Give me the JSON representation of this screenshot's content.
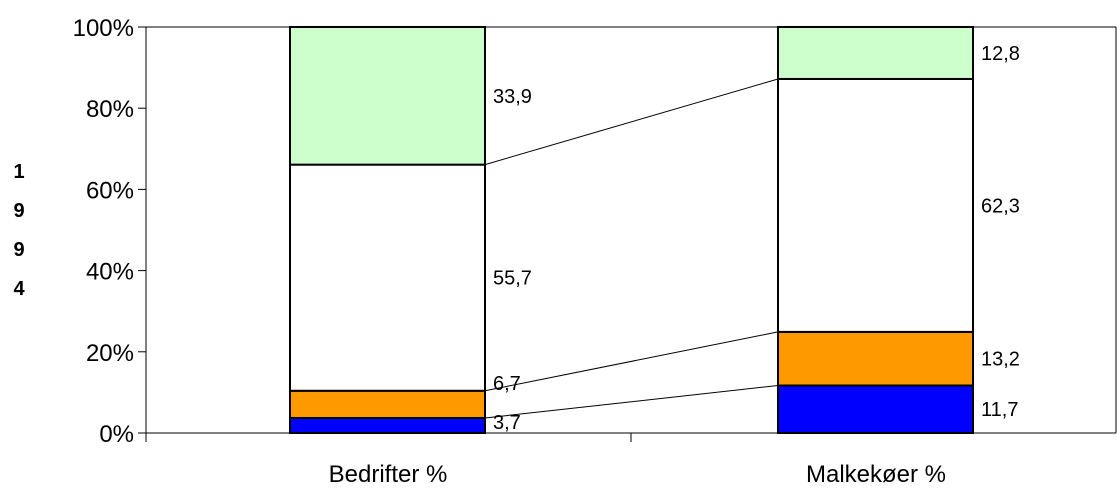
{
  "chart_data": {
    "type": "bar",
    "stacked": true,
    "percent": true,
    "ylabel": "1994",
    "categories": [
      "Bedrifter %",
      "Malkekøer %"
    ],
    "y_ticks": [
      "0%",
      "20%",
      "40%",
      "60%",
      "80%",
      "100%"
    ],
    "ylim": [
      0,
      100
    ],
    "grid": false,
    "legend": "none",
    "series": [
      {
        "values": [
          3.7,
          11.7
        ],
        "labels": [
          "3,7",
          "11,7"
        ],
        "color": "#0000ff"
      },
      {
        "values": [
          6.7,
          13.2
        ],
        "labels": [
          "6,7",
          "13,2"
        ],
        "color": "#ff9900"
      },
      {
        "values": [
          55.7,
          62.3
        ],
        "labels": [
          "55,7",
          "62,3"
        ],
        "color": "#ffffff"
      },
      {
        "values": [
          33.9,
          12.8
        ],
        "labels": [
          "33,9",
          "12,8"
        ],
        "color": "#ccffcc"
      }
    ]
  }
}
